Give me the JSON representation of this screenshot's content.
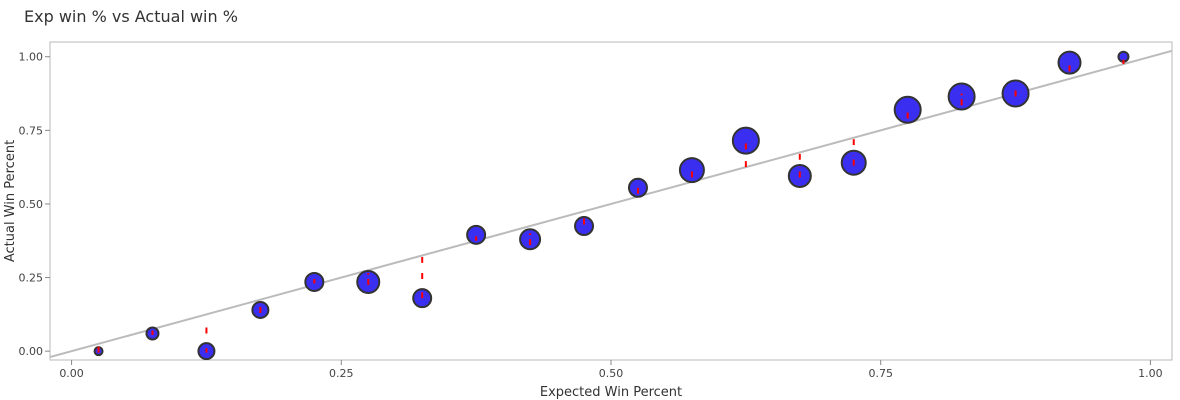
{
  "chart_data": {
    "type": "scatter",
    "title": "Exp win % vs Actual win %",
    "xlabel": "Expected Win Percent",
    "ylabel": "Actual Win Percent",
    "xlim": [
      -0.02,
      1.02
    ],
    "ylim": [
      -0.03,
      1.05
    ],
    "x_ticks": [
      "0.00",
      "0.25",
      "0.50",
      "0.75",
      "1.00"
    ],
    "x_tick_values": [
      0,
      0.25,
      0.5,
      0.75,
      1.0
    ],
    "y_ticks": [
      "0.00",
      "0.25",
      "0.50",
      "0.75",
      "1.00"
    ],
    "y_tick_values": [
      0,
      0.25,
      0.5,
      0.75,
      1.0
    ],
    "grid": false,
    "reference_line": {
      "slope": 1,
      "intercept": 0,
      "color": "#bbbbbb"
    },
    "marker_color": "#3a2ff0",
    "marker_edge_color": "#333333",
    "error_color": "#ff0000",
    "points": [
      {
        "x": 0.025,
        "y": 0.0,
        "size": 1
      },
      {
        "x": 0.075,
        "y": 0.06,
        "size": 2
      },
      {
        "x": 0.125,
        "y": 0.0,
        "size": 3
      },
      {
        "x": 0.175,
        "y": 0.14,
        "size": 3
      },
      {
        "x": 0.225,
        "y": 0.235,
        "size": 3.5
      },
      {
        "x": 0.275,
        "y": 0.235,
        "size": 4.5
      },
      {
        "x": 0.325,
        "y": 0.18,
        "size": 3.5
      },
      {
        "x": 0.375,
        "y": 0.395,
        "size": 3.5
      },
      {
        "x": 0.425,
        "y": 0.38,
        "size": 4
      },
      {
        "x": 0.475,
        "y": 0.425,
        "size": 3.5
      },
      {
        "x": 0.525,
        "y": 0.555,
        "size": 3.5
      },
      {
        "x": 0.575,
        "y": 0.615,
        "size": 5
      },
      {
        "x": 0.625,
        "y": 0.715,
        "size": 5.5
      },
      {
        "x": 0.675,
        "y": 0.595,
        "size": 4.5
      },
      {
        "x": 0.725,
        "y": 0.64,
        "size": 5
      },
      {
        "x": 0.775,
        "y": 0.82,
        "size": 5.5
      },
      {
        "x": 0.825,
        "y": 0.865,
        "size": 5.5
      },
      {
        "x": 0.875,
        "y": 0.875,
        "size": 5.5
      },
      {
        "x": 0.925,
        "y": 0.98,
        "size": 4.5
      },
      {
        "x": 0.975,
        "y": 1.0,
        "size": 1.5
      }
    ],
    "error_bars": [
      {
        "x": 0.025,
        "y_low": -0.005,
        "y_high": 0.02
      },
      {
        "x": 0.075,
        "y_low": 0.055,
        "y_high": 0.07
      },
      {
        "x": 0.125,
        "y_low": -0.005,
        "y_high": 0.01
      },
      {
        "x": 0.125,
        "y_low": 0.06,
        "y_high": 0.09
      },
      {
        "x": 0.175,
        "y_low": 0.13,
        "y_high": 0.165
      },
      {
        "x": 0.225,
        "y_low": 0.23,
        "y_high": 0.245
      },
      {
        "x": 0.275,
        "y_low": 0.225,
        "y_high": 0.265
      },
      {
        "x": 0.325,
        "y_low": 0.18,
        "y_high": 0.2
      },
      {
        "x": 0.325,
        "y_low": 0.245,
        "y_high": 0.275
      },
      {
        "x": 0.325,
        "y_low": 0.3,
        "y_high": 0.32
      },
      {
        "x": 0.375,
        "y_low": 0.375,
        "y_high": 0.39
      },
      {
        "x": 0.425,
        "y_low": 0.36,
        "y_high": 0.4
      },
      {
        "x": 0.475,
        "y_low": 0.43,
        "y_high": 0.455
      },
      {
        "x": 0.525,
        "y_low": 0.535,
        "y_high": 0.555
      },
      {
        "x": 0.575,
        "y_low": 0.59,
        "y_high": 0.62
      },
      {
        "x": 0.625,
        "y_low": 0.625,
        "y_high": 0.655
      },
      {
        "x": 0.625,
        "y_low": 0.685,
        "y_high": 0.71
      },
      {
        "x": 0.675,
        "y_low": 0.59,
        "y_high": 0.625
      },
      {
        "x": 0.675,
        "y_low": 0.65,
        "y_high": 0.67
      },
      {
        "x": 0.725,
        "y_low": 0.63,
        "y_high": 0.665
      },
      {
        "x": 0.725,
        "y_low": 0.7,
        "y_high": 0.72
      },
      {
        "x": 0.775,
        "y_low": 0.79,
        "y_high": 0.82
      },
      {
        "x": 0.825,
        "y_low": 0.835,
        "y_high": 0.875
      },
      {
        "x": 0.875,
        "y_low": 0.865,
        "y_high": 0.89
      },
      {
        "x": 0.925,
        "y_low": 0.95,
        "y_high": 0.98
      },
      {
        "x": 0.975,
        "y_low": 0.975,
        "y_high": 0.99
      }
    ]
  }
}
